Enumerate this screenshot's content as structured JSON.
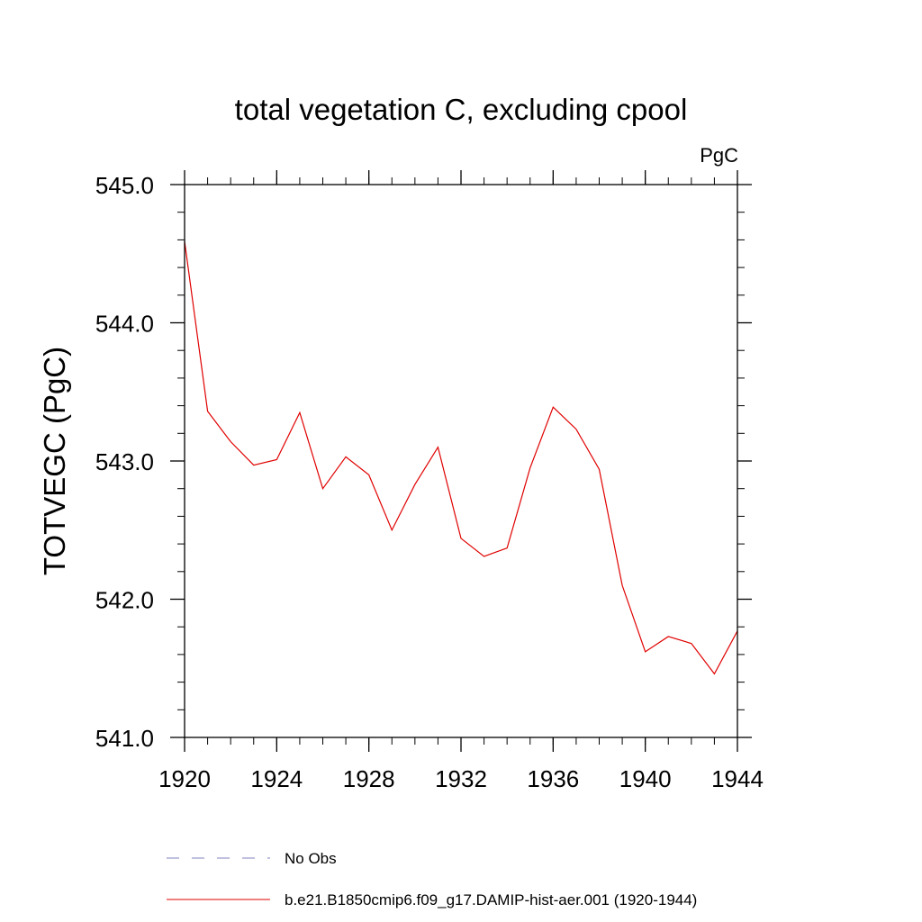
{
  "chart_data": {
    "type": "line",
    "title": "total vegetation C, excluding cpool",
    "units_label": "PgC",
    "ylabel": "TOTVEGC  (PgC)",
    "xlabel": "",
    "xlim": [
      1920,
      1944
    ],
    "ylim": [
      541.0,
      545.0
    ],
    "x_ticks": [
      1920,
      1924,
      1928,
      1932,
      1936,
      1940,
      1944
    ],
    "x_tick_labels": [
      "1920",
      "1924",
      "1928",
      "1932",
      "1936",
      "1940",
      "1944"
    ],
    "y_ticks": [
      541.0,
      542.0,
      543.0,
      544.0,
      545.0
    ],
    "y_tick_labels": [
      "541.0",
      "542.0",
      "543.0",
      "544.0",
      "545.0"
    ],
    "x_minor_step": 1,
    "y_minor_step": 0.2,
    "grid": false,
    "legend_position": "bottom",
    "series": [
      {
        "name": "No Obs",
        "color": "#8080c0",
        "dashed": true,
        "x": [],
        "values": []
      },
      {
        "name": "b.e21.B1850cmip6.f09_g17.DAMIP-hist-aer.001 (1920-1944)",
        "color": "#e00000",
        "dashed": false,
        "x": [
          1920,
          1921,
          1922,
          1923,
          1924,
          1925,
          1926,
          1927,
          1928,
          1929,
          1930,
          1931,
          1932,
          1933,
          1934,
          1935,
          1936,
          1937,
          1938,
          1939,
          1940,
          1941,
          1942,
          1943,
          1944
        ],
        "values": [
          544.59,
          543.36,
          543.14,
          542.97,
          543.01,
          543.35,
          542.8,
          543.03,
          542.9,
          542.5,
          542.83,
          543.1,
          542.44,
          542.31,
          542.37,
          542.95,
          543.39,
          543.23,
          542.94,
          542.1,
          541.62,
          541.73,
          541.68,
          541.46,
          541.77
        ]
      }
    ]
  }
}
